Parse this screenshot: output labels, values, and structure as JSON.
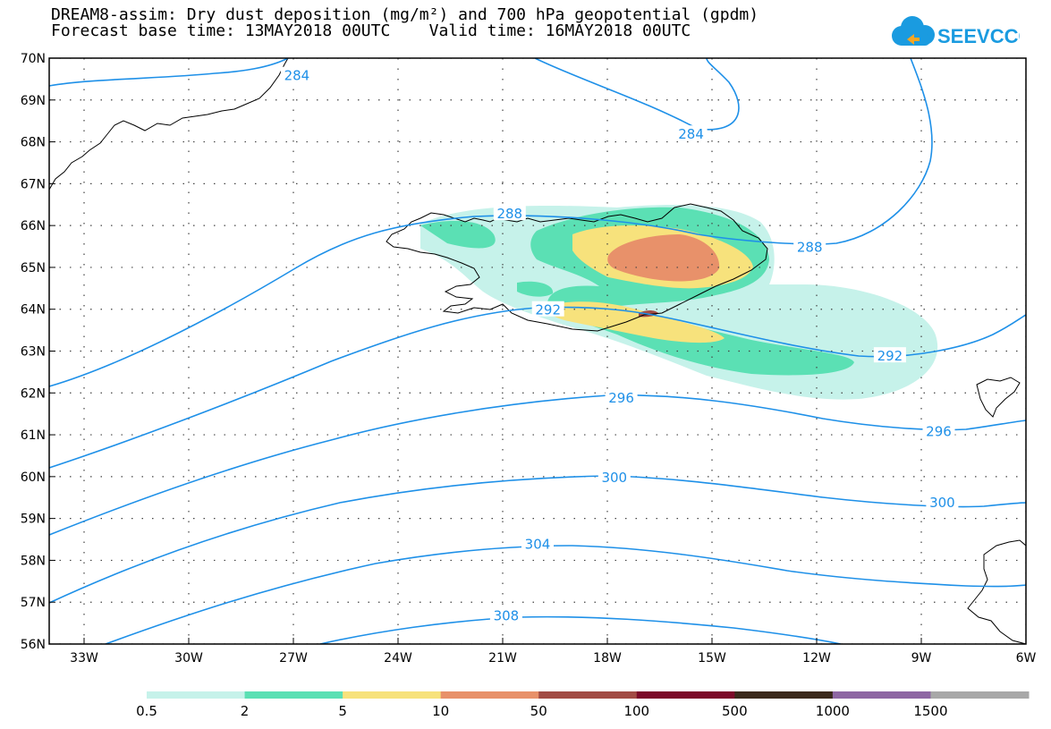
{
  "title_line1": "DREAM8-assim: Dry dust deposition (mg/m²) and 700 hPa geopotential (gpdm)",
  "title_line2": "Forecast base time: 13MAY2018 00UTC    Valid time: 16MAY2018 00UTC",
  "logo_text": "SEEVCCC",
  "colors": {
    "contour": "#1e90e8",
    "frame": "#000000",
    "coast": "#000000"
  },
  "map": {
    "lon_range": [
      -34,
      -6
    ],
    "lat_range": [
      56,
      70
    ],
    "lat_ticks": [
      {
        "value": 70,
        "label": "70N"
      },
      {
        "value": 69,
        "label": "69N"
      },
      {
        "value": 68,
        "label": "68N"
      },
      {
        "value": 67,
        "label": "67N"
      },
      {
        "value": 66,
        "label": "66N"
      },
      {
        "value": 65,
        "label": "65N"
      },
      {
        "value": 64,
        "label": "64N"
      },
      {
        "value": 63,
        "label": "63N"
      },
      {
        "value": 62,
        "label": "62N"
      },
      {
        "value": 61,
        "label": "61N"
      },
      {
        "value": 60,
        "label": "60N"
      },
      {
        "value": 59,
        "label": "59N"
      },
      {
        "value": 58,
        "label": "58N"
      },
      {
        "value": 57,
        "label": "57N"
      },
      {
        "value": 56,
        "label": "56N"
      }
    ],
    "lon_ticks": [
      {
        "value": -33,
        "label": "33W"
      },
      {
        "value": -30,
        "label": "30W"
      },
      {
        "value": -27,
        "label": "27W"
      },
      {
        "value": -24,
        "label": "24W"
      },
      {
        "value": -21,
        "label": "21W"
      },
      {
        "value": -18,
        "label": "18W"
      },
      {
        "value": -15,
        "label": "15W"
      },
      {
        "value": -12,
        "label": "12W"
      },
      {
        "value": -9,
        "label": "9W"
      },
      {
        "value": -6,
        "label": "6W"
      }
    ]
  },
  "contours": [
    {
      "value": 284,
      "label": "284",
      "label_positions": [
        [
          -26.9,
          69.6
        ],
        [
          -15.6,
          68.2
        ]
      ]
    },
    {
      "value": 288,
      "label": "288",
      "label_positions": [
        [
          -20.8,
          66.3
        ],
        [
          -12.2,
          65.5
        ]
      ]
    },
    {
      "value": 292,
      "label": "292",
      "label_positions": [
        [
          -19.7,
          64.0
        ],
        [
          -9.9,
          62.9
        ]
      ]
    },
    {
      "value": 296,
      "label": "296",
      "label_positions": [
        [
          -17.6,
          61.9
        ],
        [
          -8.5,
          61.1
        ]
      ]
    },
    {
      "value": 300,
      "label": "300",
      "label_positions": [
        [
          -17.8,
          60.0
        ],
        [
          -8.4,
          59.4
        ]
      ]
    },
    {
      "value": 304,
      "label": "304",
      "label_positions": [
        [
          -20.0,
          58.4
        ]
      ]
    },
    {
      "value": 308,
      "label": "308",
      "label_positions": [
        [
          -20.9,
          56.7
        ]
      ]
    }
  ],
  "legend": {
    "thresholds": [
      "0.5",
      "2",
      "5",
      "10",
      "50",
      "100",
      "500",
      "1000",
      "1500"
    ],
    "colors": [
      "#c6f2ea",
      "#5be0b4",
      "#f7e27c",
      "#e8916a",
      "#a24c45",
      "#7c0a2a",
      "#3b2a1c",
      "#8e67a3",
      "#a8a8a8"
    ]
  }
}
